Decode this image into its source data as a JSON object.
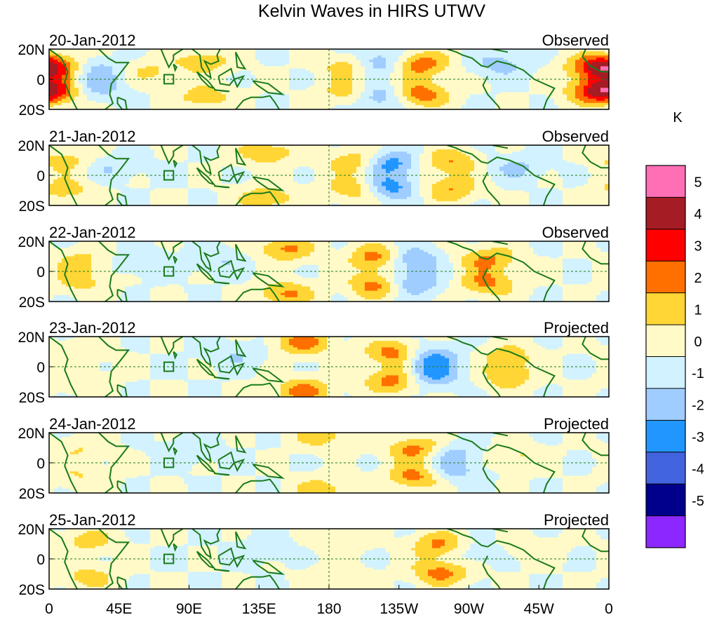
{
  "chart_data": {
    "type": "heatmap",
    "title": "Kelvin Waves in HIRS UTWV",
    "units_label": "K",
    "x_ticks": [
      {
        "lon": 0,
        "label": "0"
      },
      {
        "lon": 45,
        "label": "45E"
      },
      {
        "lon": 90,
        "label": "90E"
      },
      {
        "lon": 135,
        "label": "135E"
      },
      {
        "lon": 180,
        "label": "180"
      },
      {
        "lon": 225,
        "label": "135W"
      },
      {
        "lon": 270,
        "label": "90W"
      },
      {
        "lon": 315,
        "label": "45W"
      },
      {
        "lon": 360,
        "label": "0"
      }
    ],
    "y_ticks": [
      {
        "lat": 20,
        "label": "20N"
      },
      {
        "lat": 0,
        "label": "0"
      },
      {
        "lat": -20,
        "label": "20S"
      }
    ],
    "lon_range": [
      0,
      360
    ],
    "lat_range": [
      -20,
      20
    ],
    "colorbar": {
      "levels": [
        5,
        4,
        3,
        2,
        1,
        0,
        -1,
        -2,
        -3,
        -4,
        -5
      ],
      "labels": [
        "5",
        "4",
        "3",
        "2",
        "1",
        "0",
        "-1",
        "-2",
        "-3",
        "-4",
        "-5"
      ],
      "colors": [
        "#ff6fb5",
        "#a51c24",
        "#ff0000",
        "#ff7000",
        "#ffd635",
        "#fffac8",
        "#d2f2ff",
        "#a0cdff",
        "#2296ff",
        "#4264de",
        "#00008c",
        "#8c28ff"
      ]
    },
    "panels": [
      {
        "date": "20-Jan-2012",
        "status": "Observed",
        "amp": 1.0,
        "blobs": [
          [
            210,
            11,
            -2.7
          ],
          [
            210,
            -11,
            -2.7
          ],
          [
            195,
            9,
            2.2
          ],
          [
            195,
            -9,
            2.2
          ],
          [
            238,
            10,
            2.8
          ],
          [
            238,
            -10,
            2.8
          ],
          [
            352,
            8,
            3.2
          ],
          [
            352,
            -8,
            3.2
          ],
          [
            5,
            8,
            2.4
          ],
          [
            5,
            -8,
            2.4
          ],
          [
            100,
            12,
            1.6
          ],
          [
            100,
            -12,
            1.6
          ],
          [
            30,
            6,
            -1.5
          ],
          [
            30,
            -6,
            -1.5
          ],
          [
            65,
            5,
            1.2
          ],
          [
            290,
            10,
            -1.4
          ]
        ]
      },
      {
        "date": "21-Jan-2012",
        "status": "Observed",
        "amp": 1.0,
        "blobs": [
          [
            218,
            8,
            -2.8
          ],
          [
            218,
            -8,
            -2.8
          ],
          [
            198,
            9,
            2.2
          ],
          [
            198,
            -9,
            2.2
          ],
          [
            258,
            9,
            2.0
          ],
          [
            258,
            -9,
            2.0
          ],
          [
            140,
            15,
            1.8
          ],
          [
            140,
            -15,
            1.8
          ],
          [
            10,
            10,
            1.5
          ],
          [
            10,
            -10,
            1.5
          ],
          [
            300,
            5,
            -1.2
          ],
          [
            40,
            5,
            -1.0
          ]
        ]
      },
      {
        "date": "22-Jan-2012",
        "status": "Observed",
        "amp": 1.0,
        "blobs": [
          [
            232,
            8,
            -2.4
          ],
          [
            232,
            -8,
            -2.4
          ],
          [
            212,
            9,
            2.8
          ],
          [
            212,
            -9,
            2.8
          ],
          [
            152,
            15,
            2.2
          ],
          [
            152,
            -15,
            2.2
          ],
          [
            282,
            8,
            2.2
          ],
          [
            282,
            -8,
            2.2
          ],
          [
            20,
            7,
            1.3
          ],
          [
            20,
            -7,
            1.3
          ],
          [
            60,
            6,
            -1.0
          ],
          [
            110,
            7,
            -1.0
          ]
        ]
      },
      {
        "date": "23-Jan-2012",
        "status": "Projected",
        "amp": 1.0,
        "blobs": [
          [
            245,
            6,
            -2.5
          ],
          [
            245,
            -6,
            -2.5
          ],
          [
            223,
            9,
            2.8
          ],
          [
            223,
            -9,
            2.8
          ],
          [
            163,
            16,
            2.4
          ],
          [
            163,
            -16,
            2.4
          ],
          [
            295,
            7,
            1.5
          ],
          [
            295,
            -7,
            1.6
          ],
          [
            20,
            10,
            1.0
          ],
          [
            20,
            -10,
            1.0
          ],
          [
            120,
            8,
            -1.0
          ]
        ]
      },
      {
        "date": "24-Jan-2012",
        "status": "Projected",
        "amp": 1.0,
        "blobs": [
          [
            258,
            6,
            -1.6
          ],
          [
            258,
            -6,
            -1.6
          ],
          [
            237,
            9,
            2.6
          ],
          [
            237,
            -9,
            2.6
          ],
          [
            175,
            18,
            1.6
          ],
          [
            175,
            -18,
            1.6
          ],
          [
            300,
            4,
            1.2
          ],
          [
            20,
            9,
            1.0
          ],
          [
            20,
            -9,
            1.0
          ],
          [
            90,
            8,
            -0.9
          ]
        ]
      },
      {
        "date": "25-Jan-2012",
        "status": "Projected",
        "amp": 1.0,
        "blobs": [
          [
            252,
            9,
            2.4
          ],
          [
            252,
            -9,
            2.4
          ],
          [
            270,
            4,
            -1.1
          ],
          [
            25,
            12,
            1.4
          ],
          [
            25,
            -12,
            1.4
          ],
          [
            185,
            12,
            0.9
          ],
          [
            185,
            -12,
            0.9
          ],
          [
            140,
            6,
            -0.7
          ],
          [
            310,
            6,
            0.8
          ]
        ]
      }
    ]
  }
}
